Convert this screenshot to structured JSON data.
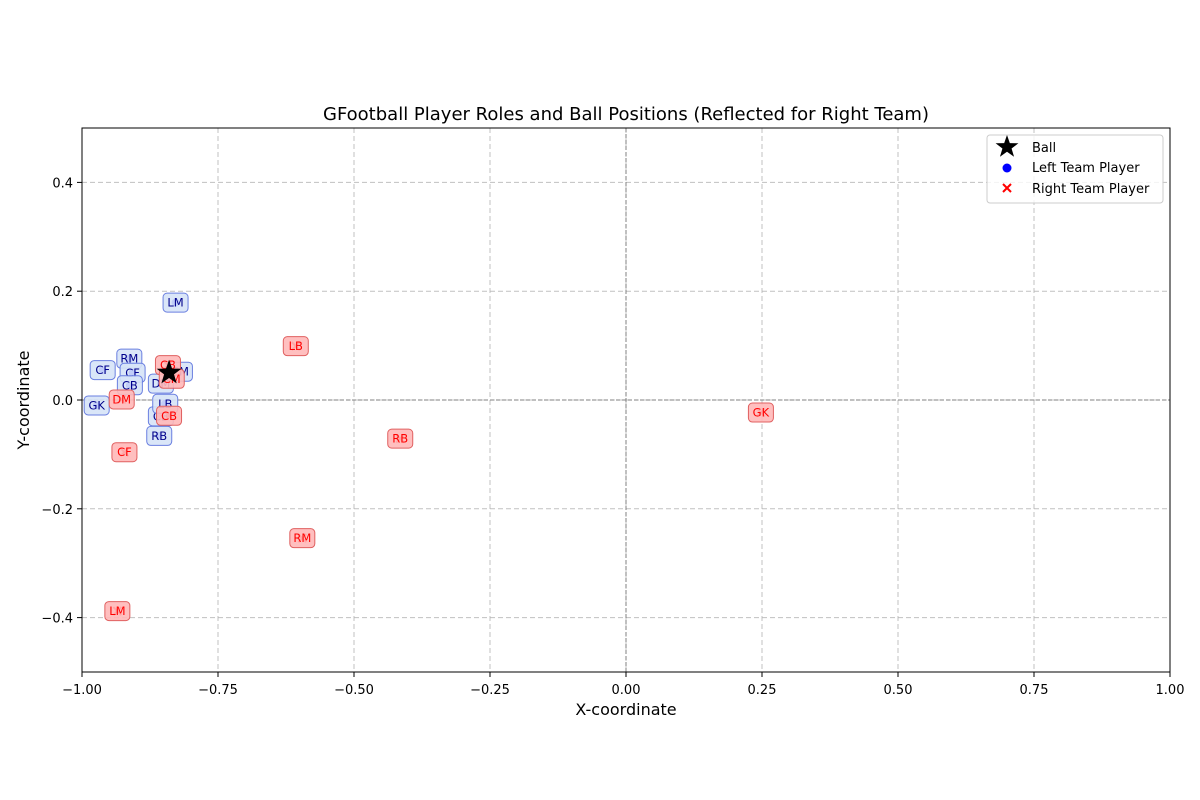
{
  "chart_data": {
    "type": "scatter",
    "title": "GFootball Player Roles and Ball Positions (Reflected for Right Team)",
    "xlabel": "X-coordinate",
    "ylabel": "Y-coordinate",
    "xlim": [
      -1.0,
      1.0
    ],
    "ylim": [
      -0.5,
      0.5
    ],
    "grid": true,
    "legend_position": "top-right",
    "x_ticks": [
      -1.0,
      -0.75,
      -0.5,
      -0.25,
      0.0,
      0.25,
      0.5,
      0.75,
      1.0
    ],
    "x_tick_labels": [
      "−1.00",
      "−0.75",
      "−0.50",
      "−0.25",
      "0.00",
      "0.25",
      "0.50",
      "0.75",
      "1.00"
    ],
    "y_ticks": [
      -0.4,
      -0.2,
      0.0,
      0.2,
      0.4
    ],
    "y_tick_labels": [
      "−0.4",
      "−0.2",
      "0.0",
      "0.2",
      "0.4"
    ],
    "series": [
      {
        "name": "Ball",
        "marker": "star",
        "color": "#000000",
        "points": [
          {
            "x": -0.84,
            "y": 0.05
          }
        ]
      },
      {
        "name": "Left Team Player",
        "marker": "circle",
        "color": "#0000ff",
        "label_text_color": "#00008b",
        "label_bg": "#d6e3f7",
        "label_border": "#6a7fe0",
        "points": [
          {
            "role": "GK",
            "x": -0.973,
            "y": -0.01
          },
          {
            "role": "CF",
            "x": -0.962,
            "y": 0.055
          },
          {
            "role": "RM",
            "x": -0.913,
            "y": 0.076
          },
          {
            "role": "CF",
            "x": -0.907,
            "y": 0.05
          },
          {
            "role": "CB",
            "x": -0.912,
            "y": 0.027
          },
          {
            "role": "DM",
            "x": -0.855,
            "y": 0.03
          },
          {
            "role": "CB",
            "x": -0.855,
            "y": -0.03
          },
          {
            "role": "LB",
            "x": -0.847,
            "y": -0.007
          },
          {
            "role": "RB",
            "x": -0.858,
            "y": -0.066
          },
          {
            "role": "CM",
            "x": -0.82,
            "y": 0.052
          },
          {
            "role": "LM",
            "x": -0.828,
            "y": 0.179
          }
        ]
      },
      {
        "name": "Right Team Player",
        "marker": "x",
        "color": "#ff0000",
        "label_text_color": "#ff0000",
        "label_bg": "#ffb8b8",
        "label_border": "#e06060",
        "points": [
          {
            "role": "GK",
            "x": 0.248,
            "y": -0.023
          },
          {
            "role": "LB",
            "x": -0.607,
            "y": 0.099
          },
          {
            "role": "RB",
            "x": -0.415,
            "y": -0.071
          },
          {
            "role": "RM",
            "x": -0.595,
            "y": -0.254
          },
          {
            "role": "LM",
            "x": -0.935,
            "y": -0.388
          },
          {
            "role": "CF",
            "x": -0.922,
            "y": -0.096
          },
          {
            "role": "DM",
            "x": -0.927,
            "y": 0.001
          },
          {
            "role": "CB",
            "x": -0.842,
            "y": 0.064
          },
          {
            "role": "CB",
            "x": -0.84,
            "y": -0.029
          },
          {
            "role": "CM",
            "x": -0.835,
            "y": 0.039
          }
        ]
      }
    ]
  }
}
